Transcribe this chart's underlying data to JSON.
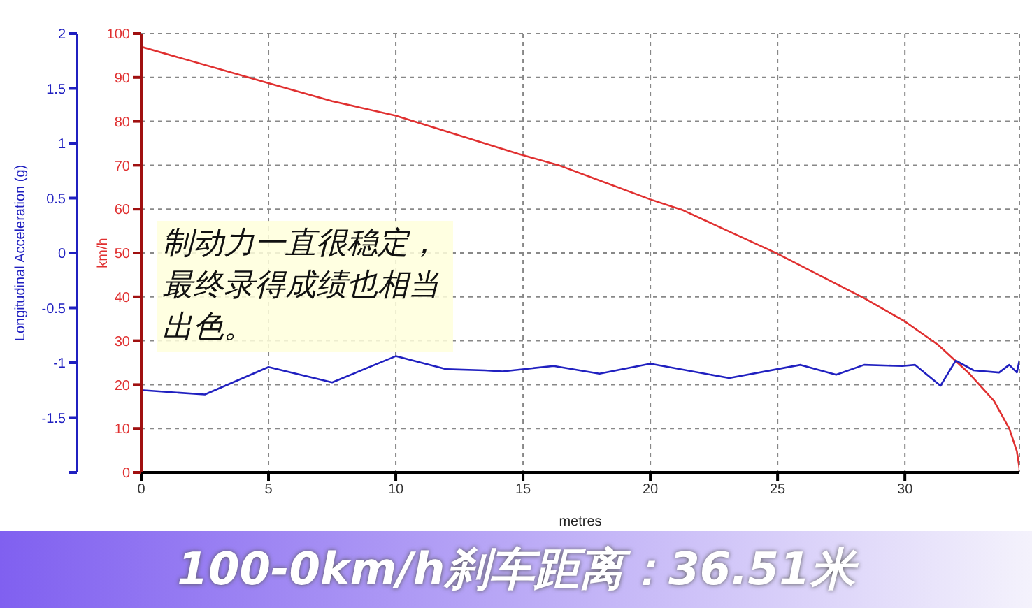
{
  "chart_data": {
    "type": "line",
    "xlabel": "metres",
    "ylabel": "km/h",
    "y2label": "Longitudinal Acceleration (g)",
    "xlim": [
      0,
      34.5
    ],
    "xticks": [
      0,
      5,
      10,
      15,
      20,
      25,
      30
    ],
    "ylim": [
      0,
      100
    ],
    "yticks": [
      0,
      10,
      20,
      30,
      40,
      50,
      60,
      70,
      80,
      90,
      100
    ],
    "y2lim": [
      -2,
      2
    ],
    "y2ticks": [
      {
        "value": -2,
        "label": null
      },
      -1.5,
      -1,
      -0.5,
      0,
      0.5,
      1,
      1.5,
      2
    ],
    "grid": true,
    "line_style": "solid",
    "marker": "none",
    "series": [
      {
        "color": "#e03030",
        "x": [
          0,
          5,
          7.5,
          10,
          14.8,
          16.4,
          20,
          21.3,
          24.9,
          28.4,
          30,
          31.3,
          32.5,
          33.5,
          34.1,
          34.4,
          34.5,
          34.5
        ],
        "values": [
          97,
          88.7,
          84.6,
          81.3,
          72.6,
          70,
          62.2,
          59.7,
          50.1,
          39.7,
          34.4,
          29.1,
          22.7,
          16.3,
          10,
          4.8,
          1,
          0
        ]
      },
      {
        "color": "#2020c0",
        "axis": "y2",
        "x": [
          0,
          2.5,
          5,
          7.5,
          10,
          12,
          13.5,
          14.2,
          16.2,
          18,
          20,
          23.1,
          25.9,
          27.3,
          28.4,
          29.9,
          30.4,
          31.4,
          32,
          32.7,
          33.7,
          34.1,
          34.4,
          34.5
        ],
        "values": [
          -1.25,
          -1.29,
          -1.04,
          -1.18,
          -0.94,
          -1.06,
          -1.07,
          -1.08,
          -1.03,
          -1.1,
          -1.01,
          -1.14,
          -1.02,
          -1.11,
          -1.02,
          -1.03,
          -1.02,
          -1.21,
          -0.98,
          -1.07,
          -1.09,
          -1.02,
          -1.09,
          -0.98
        ]
      }
    ],
    "annotations": [
      "制动力一直很稳定，最终录得成绩也相当出色。",
      "100-0km/h刹车距离：36.51米"
    ]
  }
}
